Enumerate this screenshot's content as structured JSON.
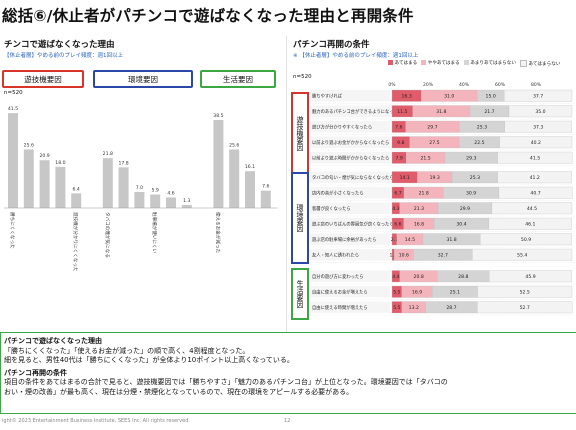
{
  "page": {
    "title": "総括⑥/休止者がパチンコで遊ばなくなった理由と再開条件",
    "footer": "ight© 2023 Entertainment Business Institute, SEES Inc. All rights reserved.",
    "page_number": "12"
  },
  "left_panel": {
    "heading": "チンコで遊ばなくなった理由",
    "note": "【休止者層】やめる前のプレイ頻度：週1回以上",
    "n_label": "n=520",
    "groups": [
      {
        "label": "遊技機要因",
        "color": "#d8342c"
      },
      {
        "label": "環境要因",
        "color": "#2b48a8"
      },
      {
        "label": "生活要因",
        "color": "#3ca745"
      }
    ]
  },
  "right_panel": {
    "heading": "パチンコ再開の条件",
    "note": "※ 【休止者層】やめる前のプレイ頻度：週1回以上",
    "n_label": "n=520",
    "legend": [
      "あてはまる",
      "ややあてはまる",
      "あまりあてはまらない",
      "あてはまらない"
    ],
    "sections": [
      {
        "label": "遊技機要因",
        "color": "#d8342c"
      },
      {
        "label": "環境要因",
        "color": "#2b48a8"
      },
      {
        "label": "生活要因",
        "color": "#3ca745"
      }
    ]
  },
  "summary": {
    "h1": "パチンコで遊ばなくなった理由",
    "p1": "「勝ちにくくなった」「使えるお金が減った」の順で高く、4割程度となった。",
    "p2": "細を見ると、男性40代は「勝ちにくくなった」が全体より10ポイント以上高くなっている。",
    "h2": "パチンコ再開の条件",
    "p3": "項目の条件をあてはまるの合計で見ると、遊技機要因では「勝ちやすさ」「魅力のあるパチンコ台」が上位となった。環境要因では「タバコの",
    "p4": "おい・煙の改善」が最も高く、現在は分煙・禁煙化となっているので、現在の環境をアピールする必要がある。"
  },
  "chart_data": [
    {
      "type": "bar",
      "title": "",
      "xlabel": "",
      "ylabel": "",
      "ylim": [
        0,
        42
      ],
      "categories": [
        {
          "label": "勝ちにくくなった",
          "group": 0
        },
        {
          "label": "",
          "group": 0
        },
        {
          "label": "",
          "group": 0
        },
        {
          "label": "",
          "group": 0
        },
        {
          "label": "遊技機が分かりにくくなった",
          "group": 0
        },
        {
          "label": "",
          "group": 0
        },
        {
          "label": "タバコの煙が気になる",
          "group": 1
        },
        {
          "label": "",
          "group": 1
        },
        {
          "label": "",
          "group": 1
        },
        {
          "label": "駐車場が使いにくい",
          "group": 1
        },
        {
          "label": "",
          "group": 1
        },
        {
          "label": "",
          "group": 1
        },
        {
          "label": "",
          "group": 1
        },
        {
          "label": "使えるお金が減った",
          "group": 2
        },
        {
          "label": "",
          "group": 2
        },
        {
          "label": "",
          "group": 2
        },
        {
          "label": "",
          "group": 2
        }
      ],
      "values": [
        41.5,
        25.6,
        20.9,
        18.0,
        6.4,
        0,
        21.8,
        17.8,
        7.0,
        5.9,
        4.6,
        1.3,
        0,
        38.5,
        25.6,
        16.1,
        7.6
      ]
    },
    {
      "type": "bar",
      "stacked": true,
      "orientation": "horizontal",
      "title": "",
      "xlim": [
        0,
        100
      ],
      "xticks": [
        "0%",
        "20%",
        "40%",
        "60%",
        "80%"
      ],
      "series_colors": [
        "#e05c6a",
        "#f3b4bc",
        "#d4d4d4",
        "#f3f3f3"
      ],
      "rows": [
        {
          "label": "勝ちやすければ",
          "section": 0,
          "values": [
            16.3,
            31.0,
            15.0,
            37.7
          ]
        },
        {
          "label": "魅力のあるパチンコ台ができるようになったら",
          "section": 0,
          "values": [
            11.5,
            31.8,
            21.7,
            35.0
          ]
        },
        {
          "label": "遊び方が分かりやすくなったら",
          "section": 0,
          "values": [
            7.6,
            29.7,
            25.3,
            37.3
          ]
        },
        {
          "label": "以前より遊ぶお金がかからなくなったら",
          "section": 0,
          "values": [
            9.8,
            27.5,
            22.5,
            40.2
          ]
        },
        {
          "label": "以前より遊ぶ時間がかからなくなったら",
          "section": 0,
          "values": [
            7.9,
            21.5,
            29.3,
            41.5
          ]
        },
        {
          "label": "タバコの匂い・煙が気にならなくなったら",
          "section": 1,
          "values": [
            14.1,
            19.3,
            25.3,
            41.2
          ]
        },
        {
          "label": "店内の音が小さくなったら",
          "section": 1,
          "values": [
            6.7,
            21.8,
            30.9,
            40.7
          ]
        },
        {
          "label": "客層が良くなったら",
          "section": 1,
          "values": [
            4.3,
            21.3,
            29.9,
            44.5
          ]
        },
        {
          "label": "遊ぶ店のいちばんの雰囲気が良くなったら",
          "section": 1,
          "values": [
            6.6,
            16.8,
            30.4,
            46.1
          ]
        },
        {
          "label": "遊ぶ店の駐車場に余裕があったら",
          "section": 1,
          "values": [
            2.7,
            14.5,
            31.8,
            50.9
          ]
        },
        {
          "label": "友人・知人に誘われたら",
          "section": 1,
          "values": [
            1.3,
            10.6,
            32.7,
            55.4
          ]
        },
        {
          "label": "自分の遊び方に変わったら",
          "section": 2,
          "values": [
            4.4,
            20.8,
            28.8,
            45.9
          ]
        },
        {
          "label": "自由に使えるお金が増えたら",
          "section": 2,
          "values": [
            5.5,
            16.9,
            25.1,
            52.5
          ]
        },
        {
          "label": "自由に使える時間が増えたら",
          "section": 2,
          "values": [
            5.5,
            13.2,
            28.7,
            52.7
          ]
        }
      ]
    }
  ]
}
